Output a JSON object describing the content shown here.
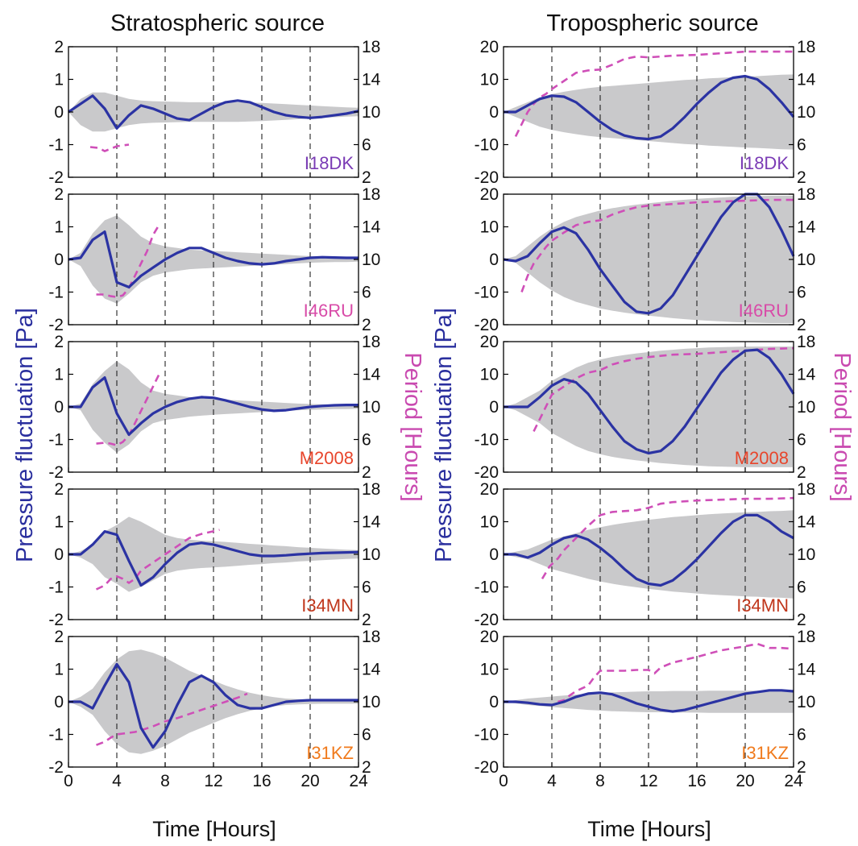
{
  "colors": {
    "pressure_line": "#2b33a3",
    "period_line": "#cf4fb8",
    "envelope_fill": "#c9c9cb",
    "ylabel_left": "#2a2f9e",
    "ylabel_right": "#c94ab0"
  },
  "figure": {
    "xlabel": "Time [Hours]",
    "ylabel_left": "Pressure fluctuation [Pa]",
    "ylabel_right": "Period [Hours]"
  },
  "chart_data": [
    {
      "type": "line",
      "column_title": "Stratospheric source",
      "x": [
        0,
        1,
        2,
        3,
        4,
        5,
        6,
        7,
        8,
        9,
        10,
        11,
        12,
        13,
        14,
        15,
        16,
        17,
        18,
        19,
        20,
        21,
        22,
        23,
        24
      ],
      "xlim": [
        0,
        24
      ],
      "xticks": [
        "0",
        "4",
        "8",
        "12",
        "16",
        "20",
        "24"
      ],
      "vlines": [
        4,
        8,
        12,
        16,
        20
      ],
      "ylim_left": [
        -2,
        2
      ],
      "yticks_left": [
        "-2",
        "-1",
        "0",
        "1",
        "2"
      ],
      "ylim_right": [
        2,
        18
      ],
      "yticks_right": [
        "2",
        "6",
        "10",
        "14",
        "18"
      ],
      "panels": [
        {
          "station": "I18DK",
          "station_color": "#7a3bb5",
          "pressure": [
            0,
            0.25,
            0.5,
            0.1,
            -0.5,
            -0.1,
            0.2,
            0.1,
            -0.05,
            -0.2,
            -0.25,
            -0.05,
            0.15,
            0.3,
            0.35,
            0.3,
            0.15,
            0,
            -0.1,
            -0.15,
            -0.18,
            -0.15,
            -0.1,
            -0.05,
            0.03
          ],
          "envelope": [
            0,
            0.4,
            0.6,
            0.6,
            0.5,
            0.4,
            0.35,
            0.33,
            0.32,
            0.31,
            0.3,
            0.3,
            0.3,
            0.3,
            0.3,
            0.29,
            0.28,
            0.26,
            0.24,
            0.22,
            0.2,
            0.18,
            0.16,
            0.14,
            0.13
          ],
          "period": {
            "x": [
              1.8,
              2.5,
              3.0,
              3.5,
              4.0,
              4.5,
              5.0
            ],
            "y": [
              5.7,
              5.6,
              5.2,
              5.5,
              5.8,
              5.9,
              6.0
            ]
          }
        },
        {
          "station": "I46RU",
          "station_color": "#d84ba8",
          "pressure": [
            0,
            0.05,
            0.6,
            0.85,
            -0.7,
            -0.85,
            -0.5,
            -0.25,
            0,
            0.2,
            0.35,
            0.35,
            0.2,
            0.05,
            -0.05,
            -0.12,
            -0.15,
            -0.12,
            -0.05,
            0,
            0.05,
            0.07,
            0.06,
            0.05,
            0.05
          ],
          "envelope": [
            0,
            0.2,
            0.8,
            1.2,
            1.35,
            1.05,
            0.7,
            0.5,
            0.4,
            0.35,
            0.3,
            0.28,
            0.26,
            0.24,
            0.22,
            0.2,
            0.18,
            0.16,
            0.14,
            0.12,
            0.1,
            0.09,
            0.08,
            0.08,
            0.07
          ],
          "period": {
            "x": [
              2.3,
              3.0,
              3.5,
              4.0,
              4.5,
              5.0,
              5.5,
              6.0,
              6.5,
              7.0,
              7.4
            ],
            "y": [
              5.7,
              5.7,
              5.5,
              5.4,
              5.6,
              6.5,
              8.0,
              9.5,
              11.0,
              13.0,
              14.0
            ]
          }
        },
        {
          "station": "M2008",
          "station_color": "#e8452b",
          "pressure": [
            0,
            0,
            0.6,
            0.9,
            -0.2,
            -0.85,
            -0.5,
            -0.2,
            0,
            0.15,
            0.25,
            0.3,
            0.28,
            0.2,
            0.1,
            0,
            -0.08,
            -0.12,
            -0.1,
            -0.05,
            0,
            0.03,
            0.05,
            0.06,
            0.06
          ],
          "envelope": [
            0,
            0.1,
            0.7,
            1.1,
            1.4,
            1.15,
            0.75,
            0.5,
            0.4,
            0.35,
            0.3,
            0.27,
            0.24,
            0.22,
            0.2,
            0.18,
            0.16,
            0.14,
            0.12,
            0.1,
            0.09,
            0.08,
            0.07,
            0.07,
            0.06
          ],
          "period": {
            "x": [
              2.3,
              3.0,
              3.5,
              4.0,
              4.5,
              5.0,
              5.5,
              6.0,
              6.5,
              7.0,
              7.5
            ],
            "y": [
              5.5,
              5.6,
              5.5,
              5.3,
              5.7,
              6.5,
              8.0,
              9.5,
              11.0,
              12.5,
              14.0
            ]
          }
        },
        {
          "station": "I34MN",
          "station_color": "#c0361b",
          "pressure": [
            0,
            0,
            0.3,
            0.7,
            0.6,
            -0.2,
            -0.95,
            -0.7,
            -0.3,
            0.05,
            0.3,
            0.35,
            0.3,
            0.2,
            0.1,
            0,
            -0.05,
            -0.05,
            -0.03,
            0,
            0.02,
            0.04,
            0.05,
            0.06,
            0.07
          ],
          "envelope": [
            0,
            0.1,
            0.3,
            0.7,
            0.9,
            1.15,
            1.0,
            0.8,
            0.6,
            0.5,
            0.45,
            0.42,
            0.4,
            0.38,
            0.35,
            0.32,
            0.3,
            0.27,
            0.25,
            0.22,
            0.2,
            0.18,
            0.16,
            0.14,
            0.13
          ],
          "period": {
            "x": [
              2.3,
              3.0,
              3.5,
              4.0,
              4.5,
              5.0,
              5.5,
              6.0,
              7.0,
              8.0,
              9.0,
              10.0,
              11.0,
              12.5
            ],
            "y": [
              5.7,
              6.2,
              7.0,
              7.3,
              7.0,
              6.5,
              7.0,
              8.0,
              9.0,
              10.0,
              11.0,
              12.0,
              12.5,
              13.0
            ]
          }
        },
        {
          "station": "I31KZ",
          "station_color": "#f07a1c",
          "pressure": [
            0,
            0,
            -0.2,
            0.5,
            1.15,
            0.6,
            -0.8,
            -1.4,
            -0.9,
            -0.1,
            0.6,
            0.8,
            0.6,
            0.2,
            -0.1,
            -0.2,
            -0.2,
            -0.1,
            0,
            0.03,
            0.05,
            0.05,
            0.05,
            0.05,
            0.05
          ],
          "envelope": [
            0,
            0.15,
            0.4,
            0.9,
            1.3,
            1.55,
            1.6,
            1.5,
            1.35,
            1.15,
            0.95,
            0.8,
            0.65,
            0.5,
            0.38,
            0.28,
            0.2,
            0.14,
            0.1,
            0.08,
            0.07,
            0.06,
            0.06,
            0.06,
            0.06
          ],
          "period": {
            "x": [
              2.3,
              3.0,
              3.5,
              4.0,
              4.5,
              5.0,
              5.5,
              6.0,
              7.0,
              8.0,
              9.0,
              10.0,
              11.0,
              12.0,
              13.0,
              14.0,
              14.8
            ],
            "y": [
              4.7,
              5.1,
              5.6,
              6.0,
              6.1,
              6.2,
              6.3,
              6.5,
              7.0,
              7.6,
              8.0,
              8.5,
              9.0,
              9.5,
              10.0,
              10.5,
              11.0
            ]
          }
        }
      ]
    },
    {
      "type": "line",
      "column_title": "Tropospheric source",
      "x": [
        0,
        1,
        2,
        3,
        4,
        5,
        6,
        7,
        8,
        9,
        10,
        11,
        12,
        13,
        14,
        15,
        16,
        17,
        18,
        19,
        20,
        21,
        22,
        23,
        24
      ],
      "xlim": [
        0,
        24
      ],
      "xticks": [
        "0",
        "4",
        "8",
        "12",
        "16",
        "20",
        "24"
      ],
      "vlines": [
        4,
        8,
        12,
        16,
        20
      ],
      "ylim_left": [
        -20,
        20
      ],
      "yticks_left": [
        "-20",
        "-10",
        "0",
        "10",
        "20"
      ],
      "ylim_right": [
        2,
        18
      ],
      "yticks_right": [
        "2",
        "6",
        "10",
        "14",
        "18"
      ],
      "panels": [
        {
          "station": "I18DK",
          "station_color": "#7a3bb5",
          "pressure": [
            0,
            0,
            2,
            4,
            5,
            4.7,
            3,
            0,
            -3,
            -5.5,
            -7.2,
            -8,
            -8.3,
            -7.5,
            -5,
            -1.5,
            2.5,
            6,
            9,
            10.5,
            11,
            10,
            7,
            3,
            -1.5
          ],
          "envelope": [
            0,
            1.5,
            3,
            4.5,
            5.5,
            6.2,
            6.8,
            7.3,
            7.7,
            8.0,
            8.3,
            8.6,
            8.9,
            9.2,
            9.5,
            9.8,
            10.0,
            10.3,
            10.5,
            10.7,
            10.9,
            11.0,
            11.2,
            11.4,
            11.5
          ],
          "period": {
            "x": [
              1,
              1.5,
              2,
              2.5,
              3,
              3.5,
              4,
              5,
              6,
              7,
              8,
              9,
              10,
              11,
              12,
              14,
              16,
              18,
              20,
              22,
              24
            ],
            "y": [
              7.0,
              8.5,
              10.0,
              11.0,
              11.8,
              12.2,
              12.8,
              13.8,
              14.8,
              15.1,
              15.2,
              15.8,
              16.5,
              16.8,
              16.7,
              16.9,
              17.0,
              17.2,
              17.4,
              17.4,
              17.4
            ]
          }
        },
        {
          "station": "I46RU",
          "station_color": "#d84ba8",
          "pressure": [
            0,
            -0.5,
            1,
            5,
            8.5,
            9.8,
            8,
            3,
            -3,
            -8,
            -13,
            -16,
            -16.5,
            -15,
            -11,
            -5,
            1,
            7,
            13,
            17.5,
            20,
            20,
            16,
            9,
            1
          ],
          "envelope": [
            0,
            1,
            4,
            7,
            9.5,
            11.5,
            13,
            14,
            15,
            15.7,
            16.3,
            16.8,
            17.2,
            17.6,
            18,
            18.3,
            18.6,
            18.8,
            19,
            19.2,
            19.3,
            19.4,
            19.5,
            19.5,
            19.5
          ],
          "period": {
            "x": [
              1.5,
              2,
              2.5,
              3,
              3.5,
              4,
              5,
              6,
              7,
              8,
              9,
              10,
              11,
              12,
              14,
              16,
              18,
              20,
              22,
              24
            ],
            "y": [
              6.0,
              8.0,
              9.5,
              10.5,
              11.5,
              12.3,
              13.3,
              14.2,
              14.6,
              14.8,
              15.5,
              16.0,
              16.4,
              16.6,
              16.8,
              17.0,
              17.1,
              17.2,
              17.3,
              17.3
            ]
          }
        },
        {
          "station": "M2008",
          "station_color": "#e8452b",
          "pressure": [
            0,
            0,
            0,
            3,
            6.5,
            8.5,
            7.5,
            4,
            -1,
            -6,
            -10.5,
            -13,
            -14.2,
            -13.5,
            -10.5,
            -6,
            -0.5,
            5,
            10.5,
            14.5,
            17.2,
            17.5,
            15,
            10,
            4
          ],
          "envelope": [
            0,
            1,
            3,
            5,
            8,
            10,
            12,
            13.5,
            14.5,
            15.3,
            15.9,
            16.4,
            16.8,
            17.2,
            17.5,
            17.8,
            18,
            18.2,
            18.3,
            18.4,
            18.5,
            18.5,
            18.5,
            18.5,
            18.5
          ],
          "period": {
            "x": [
              2.5,
              3,
              3.5,
              4,
              5,
              6,
              7,
              8,
              9,
              10,
              11,
              12,
              14,
              16,
              18,
              20,
              22,
              24
            ],
            "y": [
              7.0,
              8.5,
              10.0,
              11.5,
              12.5,
              13.5,
              14.2,
              14.5,
              15.2,
              15.6,
              15.9,
              16.1,
              16.4,
              16.5,
              16.7,
              16.9,
              17.1,
              17.2
            ]
          }
        },
        {
          "station": "I34MN",
          "station_color": "#c0361b",
          "pressure": [
            0,
            0,
            -1,
            0.5,
            3,
            5,
            5.8,
            4.5,
            2,
            -1,
            -4.5,
            -7.5,
            -9,
            -9.5,
            -8,
            -5,
            -1.5,
            2.5,
            6.5,
            10,
            12,
            12,
            10,
            7,
            5
          ],
          "envelope": [
            0,
            0.8,
            1.5,
            3,
            4.5,
            5.5,
            6.5,
            7.5,
            8.3,
            9,
            9.6,
            10.1,
            10.6,
            11,
            11.4,
            11.7,
            12,
            12.3,
            12.5,
            12.7,
            12.9,
            13,
            13.2,
            13.3,
            13.5
          ],
          "period": {
            "x": [
              3.2,
              3.8,
              4.5,
              5,
              6,
              7,
              8,
              9,
              10,
              11,
              12,
              13,
              14,
              15,
              16,
              18,
              20,
              22,
              24
            ],
            "y": [
              7.0,
              8.5,
              9.5,
              10.5,
              12.0,
              13.5,
              14.8,
              15.2,
              15.3,
              15.4,
              15.7,
              16.2,
              16.4,
              16.5,
              16.6,
              16.7,
              16.8,
              16.8,
              16.9
            ]
          }
        },
        {
          "station": "I31KZ",
          "station_color": "#f07a1c",
          "pressure": [
            0,
            0,
            -0.3,
            -0.8,
            -1,
            0,
            1.5,
            2.5,
            2.8,
            2.3,
            1,
            -0.5,
            -1.5,
            -2.5,
            -3,
            -2.5,
            -1.5,
            -0.5,
            0.5,
            1.5,
            2.5,
            3,
            3.5,
            3.5,
            3.2
          ],
          "envelope": [
            0,
            0.5,
            1,
            1.3,
            1.6,
            1.9,
            2.2,
            2.5,
            2.7,
            2.9,
            3,
            3.1,
            3.2,
            3.2,
            3.3,
            3.3,
            3.3,
            3.4,
            3.4,
            3.4,
            3.4,
            3.4,
            3.4,
            3.4,
            3.4
          ],
          "period": {
            "x": [
              4.5,
              5,
              5.5,
              6,
              7,
              7.5,
              8,
              9,
              10,
              11,
              12,
              12.5,
              13,
              14,
              16,
              18,
              20,
              21,
              22,
              23,
              24
            ],
            "y": [
              10.0,
              10.2,
              10.8,
              11.3,
              12.0,
              13.0,
              13.8,
              13.8,
              13.8,
              13.9,
              13.9,
              13.5,
              14.2,
              14.8,
              15.5,
              16.3,
              16.8,
              17.1,
              16.6,
              16.6,
              16.5
            ]
          }
        }
      ]
    }
  ]
}
